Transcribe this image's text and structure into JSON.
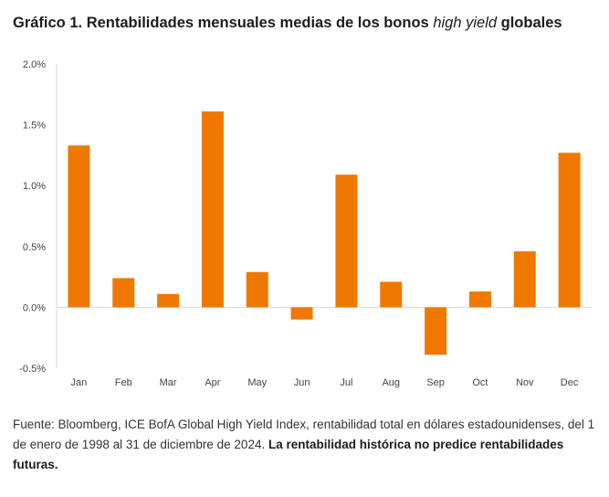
{
  "title": {
    "prefix": "Gráfico 1. Rentabilidades mensuales medias de los bonos",
    "italic": "high yield",
    "suffix": "globales"
  },
  "chart_data": {
    "type": "bar",
    "title": "Gráfico 1. Rentabilidades mensuales medias de los bonos high yield globales",
    "xlabel": "",
    "ylabel": "",
    "categories": [
      "Jan",
      "Feb",
      "Mar",
      "Apr",
      "May",
      "Jun",
      "Jul",
      "Aug",
      "Sep",
      "Oct",
      "Nov",
      "Dec"
    ],
    "values": [
      1.33,
      0.24,
      0.11,
      1.61,
      0.29,
      -0.1,
      1.09,
      0.21,
      -0.39,
      0.13,
      0.46,
      1.27
    ],
    "value_unit": "%",
    "ylim": [
      -0.5,
      2.0
    ],
    "yticks": [
      -0.5,
      0.0,
      0.5,
      1.0,
      1.5,
      2.0
    ],
    "ytick_labels": [
      "-0.5%",
      "0.0%",
      "0.5%",
      "1.0%",
      "1.5%",
      "2.0%"
    ],
    "bar_color": "#f07800",
    "grid": false,
    "legend": "none"
  },
  "source": {
    "text": "Fuente: Bloomberg, ICE BofA Global High Yield Index, rentabilidad total en dólares estadounidenses, del 1 de enero de 1998 al 31 de diciembre de 2024.",
    "bold": "La rentabilidad histórica no predice rentabilidades futuras."
  }
}
